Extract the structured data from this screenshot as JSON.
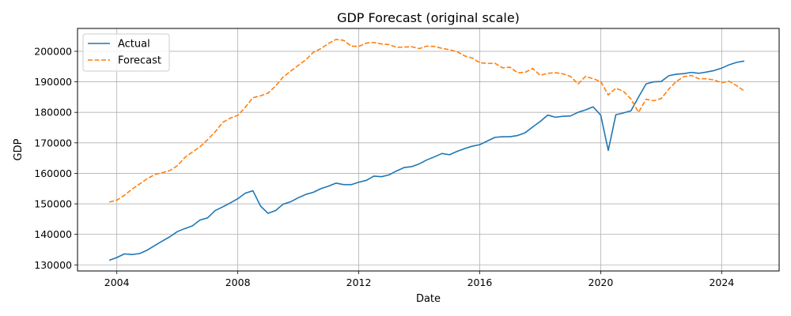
{
  "chart_data": {
    "type": "line",
    "title": "GDP Forecast (original scale)",
    "xlabel": "Date",
    "ylabel": "GDP",
    "xlim": [
      2002.7,
      2025.9
    ],
    "ylim": [
      128000,
      207500
    ],
    "x_ticks": [
      2004,
      2008,
      2012,
      2016,
      2020,
      2024
    ],
    "y_ticks": [
      130000,
      140000,
      150000,
      160000,
      170000,
      180000,
      190000,
      200000
    ],
    "y_tick_labels": [
      "130000",
      "140000",
      "150000",
      "160000",
      "170000",
      "180000",
      "190000",
      "200000"
    ],
    "grid": true,
    "legend": "upper-left",
    "series": [
      {
        "name": "Actual",
        "color": "#1f77b4",
        "style": "solid",
        "points": [
          [
            2003.75,
            131500
          ],
          [
            2004.0,
            132400
          ],
          [
            2004.25,
            133600
          ],
          [
            2004.5,
            133400
          ],
          [
            2004.75,
            133700
          ],
          [
            2005.0,
            134800
          ],
          [
            2005.25,
            136300
          ],
          [
            2005.5,
            137800
          ],
          [
            2005.75,
            139200
          ],
          [
            2006.0,
            140900
          ],
          [
            2006.25,
            141900
          ],
          [
            2006.5,
            142800
          ],
          [
            2006.75,
            144700
          ],
          [
            2007.0,
            145400
          ],
          [
            2007.25,
            147800
          ],
          [
            2007.5,
            149000
          ],
          [
            2007.75,
            150300
          ],
          [
            2008.0,
            151700
          ],
          [
            2008.25,
            153500
          ],
          [
            2008.5,
            154300
          ],
          [
            2008.75,
            149300
          ],
          [
            2009.0,
            146900
          ],
          [
            2009.25,
            147800
          ],
          [
            2009.5,
            149900
          ],
          [
            2009.75,
            150700
          ],
          [
            2010.0,
            152000
          ],
          [
            2010.25,
            153100
          ],
          [
            2010.5,
            153800
          ],
          [
            2010.75,
            155000
          ],
          [
            2011.0,
            155800
          ],
          [
            2011.25,
            156800
          ],
          [
            2011.5,
            156300
          ],
          [
            2011.75,
            156300
          ],
          [
            2012.0,
            157100
          ],
          [
            2012.25,
            157700
          ],
          [
            2012.5,
            159100
          ],
          [
            2012.75,
            158900
          ],
          [
            2013.0,
            159500
          ],
          [
            2013.25,
            160800
          ],
          [
            2013.5,
            161900
          ],
          [
            2013.75,
            162200
          ],
          [
            2014.0,
            163100
          ],
          [
            2014.25,
            164400
          ],
          [
            2014.5,
            165400
          ],
          [
            2014.75,
            166500
          ],
          [
            2015.0,
            166100
          ],
          [
            2015.25,
            167200
          ],
          [
            2015.5,
            168100
          ],
          [
            2015.75,
            168900
          ],
          [
            2016.0,
            169400
          ],
          [
            2016.25,
            170600
          ],
          [
            2016.5,
            171800
          ],
          [
            2016.75,
            172000
          ],
          [
            2017.0,
            172000
          ],
          [
            2017.25,
            172400
          ],
          [
            2017.5,
            173300
          ],
          [
            2017.75,
            175200
          ],
          [
            2018.0,
            177000
          ],
          [
            2018.25,
            179100
          ],
          [
            2018.5,
            178400
          ],
          [
            2018.75,
            178700
          ],
          [
            2019.0,
            178800
          ],
          [
            2019.25,
            180000
          ],
          [
            2019.5,
            180800
          ],
          [
            2019.75,
            181800
          ],
          [
            2020.0,
            179100
          ],
          [
            2020.25,
            167500
          ],
          [
            2020.5,
            179200
          ],
          [
            2020.75,
            179800
          ],
          [
            2021.0,
            180500
          ],
          [
            2021.25,
            185000
          ],
          [
            2021.5,
            189300
          ],
          [
            2021.75,
            190000
          ],
          [
            2022.0,
            190100
          ],
          [
            2022.25,
            192000
          ],
          [
            2022.5,
            192500
          ],
          [
            2022.75,
            192700
          ],
          [
            2023.0,
            193100
          ],
          [
            2023.25,
            192800
          ],
          [
            2023.5,
            193200
          ],
          [
            2023.75,
            193700
          ],
          [
            2024.0,
            194500
          ],
          [
            2024.25,
            195600
          ],
          [
            2024.5,
            196400
          ],
          [
            2024.75,
            196800
          ]
        ]
      },
      {
        "name": "Forecast",
        "color": "#ff7f0e",
        "style": "dashed",
        "points": [
          [
            2003.75,
            150600
          ],
          [
            2004.0,
            151200
          ],
          [
            2004.25,
            152800
          ],
          [
            2004.5,
            154800
          ],
          [
            2004.75,
            156500
          ],
          [
            2005.0,
            158200
          ],
          [
            2005.25,
            159600
          ],
          [
            2005.5,
            160200
          ],
          [
            2005.75,
            160900
          ],
          [
            2006.0,
            162500
          ],
          [
            2006.25,
            165200
          ],
          [
            2006.5,
            167000
          ],
          [
            2006.75,
            168700
          ],
          [
            2007.0,
            171000
          ],
          [
            2007.25,
            173600
          ],
          [
            2007.5,
            176700
          ],
          [
            2007.75,
            178100
          ],
          [
            2008.0,
            179000
          ],
          [
            2008.25,
            181700
          ],
          [
            2008.5,
            184800
          ],
          [
            2008.75,
            185400
          ],
          [
            2009.0,
            186300
          ],
          [
            2009.25,
            188600
          ],
          [
            2009.5,
            191600
          ],
          [
            2009.75,
            193500
          ],
          [
            2010.0,
            195400
          ],
          [
            2010.25,
            197200
          ],
          [
            2010.5,
            199700
          ],
          [
            2010.75,
            200900
          ],
          [
            2011.0,
            202600
          ],
          [
            2011.25,
            203900
          ],
          [
            2011.5,
            203600
          ],
          [
            2011.75,
            201700
          ],
          [
            2012.0,
            201600
          ],
          [
            2012.25,
            202700
          ],
          [
            2012.5,
            202900
          ],
          [
            2012.75,
            202400
          ],
          [
            2013.0,
            202200
          ],
          [
            2013.25,
            201300
          ],
          [
            2013.5,
            201400
          ],
          [
            2013.75,
            201500
          ],
          [
            2014.0,
            200900
          ],
          [
            2014.25,
            201700
          ],
          [
            2014.5,
            201600
          ],
          [
            2014.75,
            201000
          ],
          [
            2015.0,
            200500
          ],
          [
            2015.25,
            199900
          ],
          [
            2015.5,
            198500
          ],
          [
            2015.75,
            197800
          ],
          [
            2016.0,
            196300
          ],
          [
            2016.25,
            196000
          ],
          [
            2016.5,
            196100
          ],
          [
            2016.75,
            194600
          ],
          [
            2017.0,
            194800
          ],
          [
            2017.25,
            193000
          ],
          [
            2017.5,
            193100
          ],
          [
            2017.75,
            194400
          ],
          [
            2018.0,
            192100
          ],
          [
            2018.25,
            192800
          ],
          [
            2018.5,
            193000
          ],
          [
            2018.75,
            192600
          ],
          [
            2019.0,
            191800
          ],
          [
            2019.25,
            189300
          ],
          [
            2019.5,
            191800
          ],
          [
            2019.75,
            191000
          ],
          [
            2020.0,
            190100
          ],
          [
            2020.25,
            185700
          ],
          [
            2020.5,
            187900
          ],
          [
            2020.75,
            186900
          ],
          [
            2021.0,
            184400
          ],
          [
            2021.25,
            180000
          ],
          [
            2021.5,
            184300
          ],
          [
            2021.75,
            183800
          ],
          [
            2022.0,
            184500
          ],
          [
            2022.25,
            187600
          ],
          [
            2022.5,
            190100
          ],
          [
            2022.75,
            191700
          ],
          [
            2023.0,
            192100
          ],
          [
            2023.25,
            191000
          ],
          [
            2023.5,
            191000
          ],
          [
            2023.75,
            190600
          ],
          [
            2024.0,
            189700
          ],
          [
            2024.25,
            190200
          ],
          [
            2024.5,
            188700
          ],
          [
            2024.75,
            187000
          ]
        ]
      }
    ]
  }
}
